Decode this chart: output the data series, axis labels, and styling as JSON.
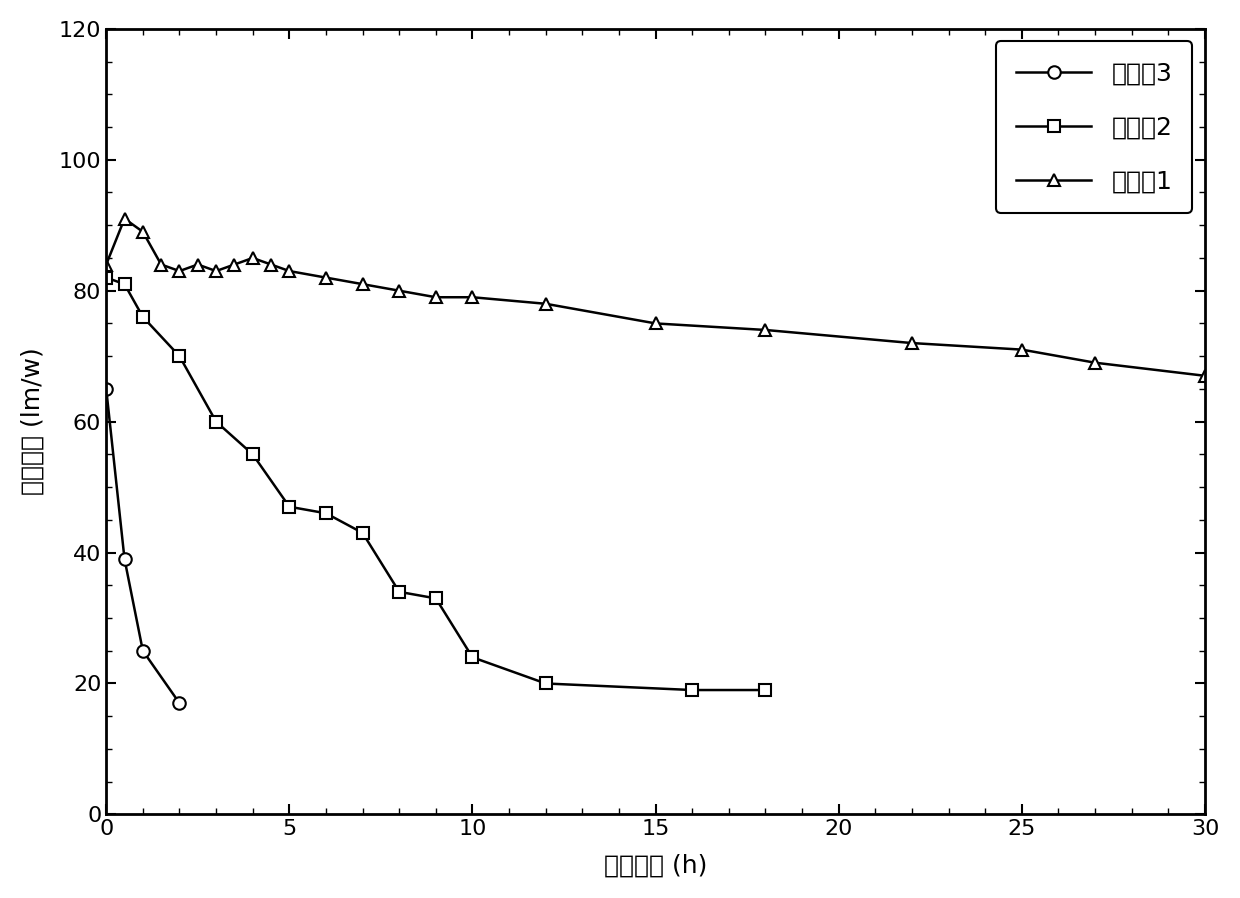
{
  "series3_x": [
    0,
    0.5,
    1,
    2
  ],
  "series3_y": [
    65,
    39,
    25,
    17
  ],
  "series2_x": [
    0,
    0.5,
    1,
    2,
    3,
    4,
    5,
    6,
    7,
    8,
    9,
    10,
    12,
    16,
    18
  ],
  "series2_y": [
    82,
    81,
    76,
    70,
    60,
    55,
    47,
    46,
    43,
    34,
    33,
    24,
    20,
    19,
    19
  ],
  "series1_x": [
    0,
    0.5,
    1,
    1.5,
    2,
    2.5,
    3,
    3.5,
    4,
    4.5,
    5,
    6,
    7,
    8,
    9,
    10,
    12,
    15,
    18,
    22,
    25,
    27,
    30
  ],
  "series1_y": [
    84,
    91,
    89,
    84,
    83,
    84,
    83,
    84,
    85,
    84,
    83,
    82,
    81,
    80,
    79,
    79,
    78,
    75,
    74,
    72,
    71,
    69,
    67
  ],
  "xlabel": "老化时间 (h)",
  "ylabel": "发光效率 (lm/w)",
  "xlim": [
    0,
    30
  ],
  "ylim": [
    0,
    120
  ],
  "xticks": [
    0,
    5,
    10,
    15,
    20,
    25,
    30
  ],
  "yticks": [
    0,
    20,
    40,
    60,
    80,
    100,
    120
  ],
  "legend_labels": [
    "实施例3",
    "实施例2",
    "实施例1"
  ],
  "line_color": "#000000",
  "background_color": "#ffffff",
  "label_fontsize": 18,
  "tick_fontsize": 16,
  "legend_fontsize": 18
}
